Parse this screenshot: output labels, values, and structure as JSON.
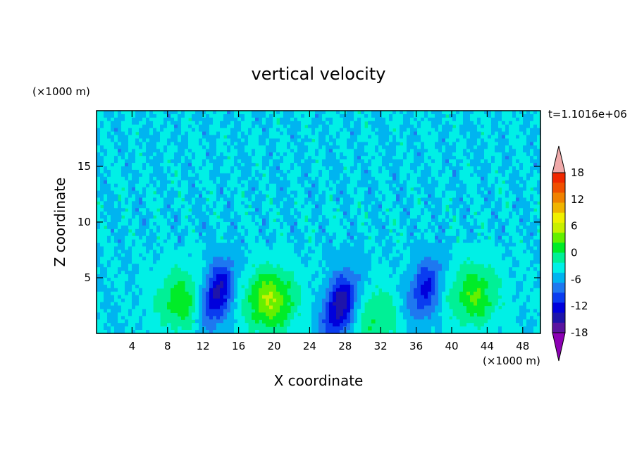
{
  "chart_data": {
    "type": "heatmap",
    "title": "vertical velocity",
    "xlabel": "X coordinate",
    "ylabel": "Z coordinate",
    "x_unit": "(×1000 m)",
    "y_unit": "(×1000 m)",
    "time_label": "t=1.1016e+06",
    "xlim": [
      0,
      50
    ],
    "ylim": [
      0,
      20
    ],
    "x_ticks": [
      4,
      8,
      12,
      16,
      20,
      24,
      28,
      32,
      36,
      40,
      44,
      48
    ],
    "y_ticks": [
      5,
      10,
      15
    ],
    "grid": false,
    "colorbar": {
      "ticks": [
        18,
        12,
        6,
        0,
        -6,
        -12,
        -18
      ],
      "min": -21,
      "max": 21,
      "step": 3,
      "colors": [
        "#8c00b4",
        "#5a14a0",
        "#1e14aa",
        "#0000dc",
        "#0a3cf0",
        "#1e78f0",
        "#00b4f0",
        "#00f0e6",
        "#00f096",
        "#00ec28",
        "#64f000",
        "#c8f000",
        "#f0f000",
        "#f0b400",
        "#f08200",
        "#f05000",
        "#f02800",
        "#f0aaaa"
      ]
    },
    "features": [
      {
        "type": "updraft",
        "x": 9.5,
        "z": 3.0,
        "peak_w": 8
      },
      {
        "type": "downdraft",
        "x": 13.5,
        "z": 3.5,
        "peak_w": -14
      },
      {
        "type": "updraft",
        "x": 19.5,
        "z": 3.0,
        "peak_w": 12
      },
      {
        "type": "downdraft",
        "x": 27.5,
        "z": 2.5,
        "peak_w": -15
      },
      {
        "type": "updraft",
        "x": 31.5,
        "z": 1.5,
        "peak_w": 6
      },
      {
        "type": "downdraft",
        "x": 37.0,
        "z": 4.0,
        "peak_w": -10
      },
      {
        "type": "updraft",
        "x": 42.5,
        "z": 3.5,
        "peak_w": 9
      }
    ]
  }
}
